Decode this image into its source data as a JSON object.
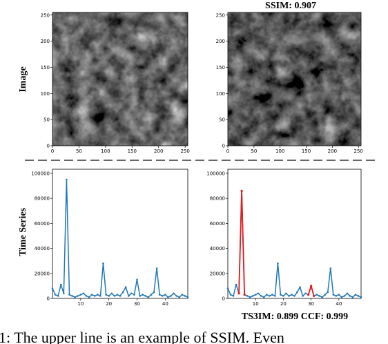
{
  "row_labels": {
    "top": "Image",
    "bottom": "Time Series"
  },
  "top_right_title": "SSIM: 0.907",
  "bottom_metric_text": "TS3IM: 0.899 CCF: 0.999",
  "caption_fragment": "1: The upper line is an example of SSIM. Even",
  "colors": {
    "series": "#1f77b4",
    "highlight": "#e41a1c",
    "divider": "#333333"
  },
  "chart_data": [
    {
      "type": "image",
      "title": "",
      "xlim": [
        0,
        255
      ],
      "ylim": [
        0,
        255
      ],
      "xticks": [
        0,
        50,
        100,
        150,
        200,
        250
      ],
      "yticks": [
        0,
        50,
        100,
        150,
        200,
        250
      ],
      "xticklabels": [
        "0",
        "50",
        "100",
        "150",
        "200",
        "250"
      ],
      "yticklabels": [
        "0",
        "50",
        "100",
        "150",
        "200",
        "250"
      ]
    },
    {
      "type": "image",
      "title": "SSIM: 0.907",
      "xlim": [
        0,
        255
      ],
      "ylim": [
        0,
        255
      ],
      "xticks": [
        0,
        50,
        100,
        150,
        200,
        250
      ],
      "yticks": [
        0,
        50,
        100,
        150,
        200,
        250
      ],
      "xticklabels": [
        "0",
        "50",
        "100",
        "150",
        "200",
        "250"
      ],
      "yticklabels": [
        "0",
        "50",
        "100",
        "150",
        "200",
        "250"
      ]
    },
    {
      "type": "line",
      "title": "",
      "xlim": [
        0,
        48
      ],
      "ylim": [
        0,
        100000
      ],
      "xticks": [
        10,
        20,
        30,
        40
      ],
      "yticks": [
        0,
        20000,
        40000,
        60000,
        80000,
        100000
      ],
      "xticklabels": [
        "10",
        "20",
        "30",
        "40"
      ],
      "yticklabels": [
        "0",
        "20000",
        "40000",
        "60000",
        "80000",
        "100000"
      ],
      "series": [
        {
          "x": [
            0,
            1,
            2,
            3,
            4,
            5,
            6,
            7,
            8,
            9,
            10,
            11,
            12,
            13,
            14,
            15,
            16,
            17,
            18,
            19,
            20,
            21,
            22,
            23,
            24,
            25,
            26,
            27,
            28,
            29,
            30,
            31,
            32,
            33,
            34,
            35,
            36,
            37,
            38,
            39,
            40,
            41,
            42,
            43,
            44,
            45,
            46,
            47,
            48
          ],
          "y": [
            8000,
            3000,
            2000,
            11000,
            4000,
            95000,
            3000,
            2000,
            1000,
            2000,
            3000,
            4000,
            2000,
            1000,
            3000,
            2000,
            3000,
            2000,
            28000,
            3000,
            2000,
            4000,
            2000,
            3000,
            2000,
            5000,
            9000,
            2000,
            4000,
            3000,
            15000,
            2000,
            3000,
            2000,
            1000,
            3000,
            5000,
            24000,
            3000,
            2000,
            3000,
            1000,
            2000,
            4000,
            2000,
            1000,
            3000,
            2000,
            1000
          ]
        }
      ]
    },
    {
      "type": "line",
      "title": "",
      "xlim": [
        0,
        48
      ],
      "ylim": [
        0,
        100000
      ],
      "xticks": [
        10,
        20,
        30,
        40
      ],
      "yticks": [
        0,
        20000,
        40000,
        60000,
        80000,
        100000
      ],
      "xticklabels": [
        "10",
        "20",
        "30",
        "40"
      ],
      "yticklabels": [
        "0",
        "20000",
        "40000",
        "60000",
        "80000",
        "100000"
      ],
      "series": [
        {
          "x": [
            0,
            1,
            2,
            3,
            4,
            5,
            6,
            7,
            8,
            9,
            10,
            11,
            12,
            13,
            14,
            15,
            16,
            17,
            18,
            19,
            20,
            21,
            22,
            23,
            24,
            25,
            26,
            27,
            28,
            29,
            30,
            31,
            32,
            33,
            34,
            35,
            36,
            37,
            38,
            39,
            40,
            41,
            42,
            43,
            44,
            45,
            46,
            47,
            48
          ],
          "y": [
            8000,
            3000,
            2000,
            11000,
            4000,
            86000,
            3000,
            2000,
            1000,
            2000,
            3000,
            4000,
            2000,
            1000,
            3000,
            2000,
            3000,
            2000,
            28000,
            3000,
            2000,
            4000,
            2000,
            3000,
            2000,
            5000,
            9000,
            2000,
            4000,
            3000,
            10000,
            2000,
            3000,
            2000,
            1000,
            3000,
            5000,
            24000,
            3000,
            2000,
            3000,
            1000,
            2000,
            4000,
            2000,
            1000,
            3000,
            2000,
            1000
          ]
        }
      ],
      "highlighted_segments": [
        [
          4,
          6
        ],
        [
          29,
          31
        ]
      ]
    }
  ]
}
